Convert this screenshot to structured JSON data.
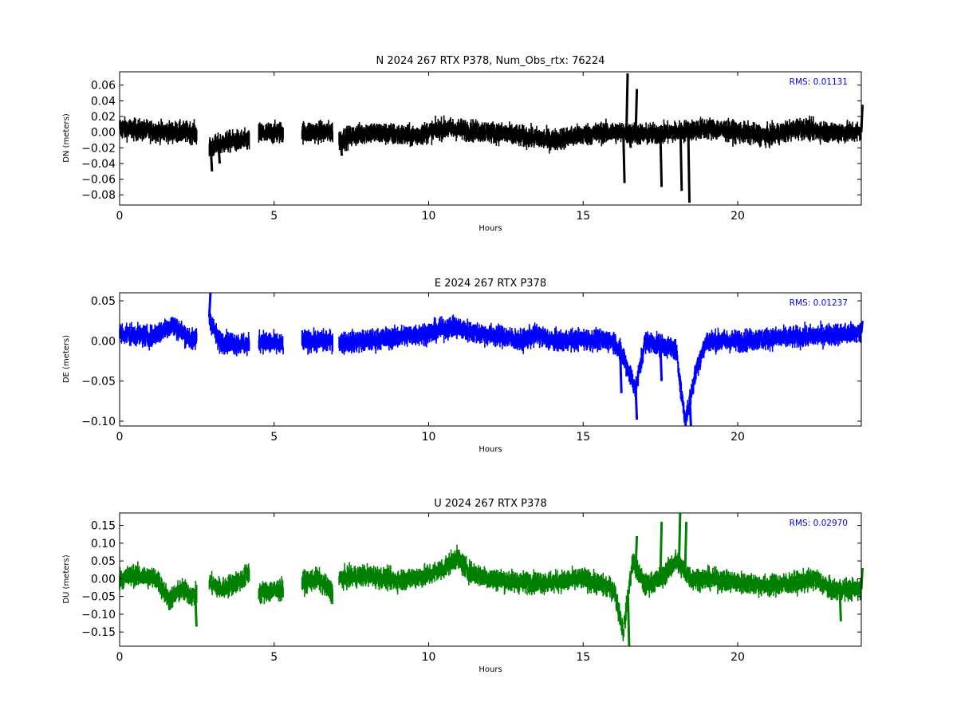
{
  "chart_data": [
    {
      "type": "scatter",
      "title": "N 2024 267 RTX  P378, Num_Obs_rtx: 76224",
      "xlabel": "Hours",
      "ylabel": "DN (meters)",
      "xlim": [
        0,
        24
      ],
      "ylim": [
        -0.093,
        0.077
      ],
      "xticks": [
        0,
        5,
        10,
        15,
        20
      ],
      "yticks": [
        -0.08,
        -0.06,
        -0.04,
        -0.02,
        0.0,
        0.02,
        0.04,
        0.06
      ],
      "ytick_labels": [
        "−0.08",
        "−0.06",
        "−0.04",
        "−0.02",
        "0.00",
        "0.02",
        "0.04",
        "0.06"
      ],
      "grid": false,
      "color": "#000000",
      "annotation": "RMS:  0.01131",
      "annotation_color": "#0000ff",
      "segments": [
        [
          0.0,
          2.5
        ],
        [
          2.9,
          4.2
        ],
        [
          4.5,
          5.3
        ],
        [
          5.9,
          6.9
        ],
        [
          7.1,
          24.0
        ]
      ],
      "trend": [
        [
          0,
          0.005
        ],
        [
          0.5,
          0.003
        ],
        [
          1.5,
          0.0
        ],
        [
          2.4,
          0.0
        ],
        [
          2.9,
          -0.02
        ],
        [
          3.5,
          -0.012
        ],
        [
          4.2,
          -0.01
        ],
        [
          4.5,
          -0.002
        ],
        [
          5.3,
          0.0
        ],
        [
          5.9,
          0.0
        ],
        [
          6.9,
          0.0
        ],
        [
          7.1,
          -0.01
        ],
        [
          8.0,
          0.0
        ],
        [
          9.5,
          -0.005
        ],
        [
          10.5,
          0.005
        ],
        [
          12,
          0.0
        ],
        [
          13,
          -0.005
        ],
        [
          14,
          -0.01
        ],
        [
          15,
          -0.003
        ],
        [
          16,
          0.0
        ],
        [
          17,
          -0.003
        ],
        [
          18,
          0.0
        ],
        [
          19,
          0.005
        ],
        [
          20,
          0.0
        ],
        [
          21,
          -0.005
        ],
        [
          22,
          0.005
        ],
        [
          23,
          0.0
        ],
        [
          24,
          0.0
        ]
      ],
      "noise": 0.008,
      "spikes": [
        [
          2.95,
          -0.05
        ],
        [
          3.2,
          -0.04
        ],
        [
          7.15,
          -0.03
        ],
        [
          16.3,
          -0.065
        ],
        [
          16.4,
          0.075
        ],
        [
          16.5,
          -0.02
        ],
        [
          16.7,
          0.055
        ],
        [
          17.5,
          -0.07
        ],
        [
          18.15,
          -0.075
        ],
        [
          18.4,
          -0.09
        ],
        [
          24.0,
          0.035
        ]
      ]
    },
    {
      "type": "scatter",
      "title": "E 2024 267 RTX  P378",
      "xlabel": "Hours",
      "ylabel": "DE (meters)",
      "xlim": [
        0,
        24
      ],
      "ylim": [
        -0.106,
        0.06
      ],
      "xticks": [
        0,
        5,
        10,
        15,
        20
      ],
      "yticks": [
        -0.1,
        -0.05,
        0.0,
        0.05
      ],
      "ytick_labels": [
        "−0.10",
        "−0.05",
        "0.00",
        "0.05"
      ],
      "grid": false,
      "color": "#0000ff",
      "annotation": "RMS:  0.01237",
      "annotation_color": "#0000ff",
      "segments": [
        [
          0.0,
          2.5
        ],
        [
          2.9,
          4.2
        ],
        [
          4.5,
          5.3
        ],
        [
          5.9,
          6.9
        ],
        [
          7.1,
          24.0
        ]
      ],
      "trend": [
        [
          0,
          0.01
        ],
        [
          1.0,
          0.005
        ],
        [
          1.7,
          0.02
        ],
        [
          2.4,
          0.0
        ],
        [
          2.9,
          0.03
        ],
        [
          3.2,
          0.0
        ],
        [
          4.2,
          -0.005
        ],
        [
          4.5,
          0.0
        ],
        [
          5.3,
          -0.005
        ],
        [
          5.9,
          0.0
        ],
        [
          6.9,
          0.0
        ],
        [
          7.1,
          -0.002
        ],
        [
          8,
          0.0
        ],
        [
          9,
          0.005
        ],
        [
          10,
          0.01
        ],
        [
          10.8,
          0.018
        ],
        [
          11.5,
          0.01
        ],
        [
          12.5,
          0.005
        ],
        [
          13,
          0.0
        ],
        [
          13.5,
          0.008
        ],
        [
          14,
          0.0
        ],
        [
          15,
          0.002
        ],
        [
          16,
          0.0
        ],
        [
          16.3,
          -0.02
        ],
        [
          16.7,
          -0.06
        ],
        [
          17,
          0.0
        ],
        [
          17.5,
          -0.005
        ],
        [
          18,
          -0.01
        ],
        [
          18.3,
          -0.1
        ],
        [
          18.7,
          -0.03
        ],
        [
          19,
          0.0
        ],
        [
          20,
          0.0
        ],
        [
          21,
          0.003
        ],
        [
          22,
          0.005
        ],
        [
          23,
          0.008
        ],
        [
          24,
          0.01
        ]
      ],
      "noise": 0.008,
      "spikes": [
        [
          2.9,
          0.06
        ],
        [
          16.2,
          -0.065
        ],
        [
          16.7,
          -0.098
        ],
        [
          17.5,
          -0.05
        ],
        [
          18.1,
          -0.05
        ],
        [
          18.45,
          -0.106
        ],
        [
          24.0,
          0.025
        ]
      ]
    },
    {
      "type": "scatter",
      "title": "U 2024 267 RTX  P378",
      "xlabel": "Hours",
      "ylabel": "DU (meters)",
      "xlim": [
        0,
        24
      ],
      "ylim": [
        -0.19,
        0.185
      ],
      "xticks": [
        0,
        5,
        10,
        15,
        20
      ],
      "yticks": [
        -0.15,
        -0.1,
        -0.05,
        0.0,
        0.05,
        0.1,
        0.15
      ],
      "ytick_labels": [
        "−0.15",
        "−0.10",
        "−0.05",
        "0.00",
        "0.05",
        "0.10",
        "0.15"
      ],
      "grid": false,
      "color": "#008000",
      "annotation": "RMS:  0.02970",
      "annotation_color": "#0000ff",
      "segments": [
        [
          0.0,
          2.5
        ],
        [
          2.9,
          4.2
        ],
        [
          4.5,
          5.3
        ],
        [
          5.9,
          6.9
        ],
        [
          7.1,
          24.0
        ]
      ],
      "trend": [
        [
          0,
          0.0
        ],
        [
          0.5,
          0.01
        ],
        [
          1.2,
          0.0
        ],
        [
          1.6,
          -0.06
        ],
        [
          2.0,
          -0.03
        ],
        [
          2.4,
          -0.05
        ],
        [
          2.9,
          -0.01
        ],
        [
          3.3,
          -0.03
        ],
        [
          4.0,
          0.0
        ],
        [
          4.2,
          0.02
        ],
        [
          4.5,
          -0.04
        ],
        [
          5.3,
          -0.03
        ],
        [
          5.9,
          -0.01
        ],
        [
          6.4,
          0.0
        ],
        [
          6.9,
          -0.04
        ],
        [
          7.1,
          0.0
        ],
        [
          8,
          0.01
        ],
        [
          9,
          -0.005
        ],
        [
          10,
          0.01
        ],
        [
          10.5,
          0.03
        ],
        [
          10.9,
          0.06
        ],
        [
          11.3,
          0.02
        ],
        [
          12,
          0.0
        ],
        [
          13,
          -0.01
        ],
        [
          14,
          -0.01
        ],
        [
          15,
          0.0
        ],
        [
          16,
          -0.03
        ],
        [
          16.3,
          -0.15
        ],
        [
          16.6,
          0.05
        ],
        [
          17,
          -0.02
        ],
        [
          17.5,
          0.0
        ],
        [
          18,
          0.05
        ],
        [
          18.5,
          0.0
        ],
        [
          19,
          0.0
        ],
        [
          20,
          -0.01
        ],
        [
          21,
          -0.02
        ],
        [
          22,
          -0.01
        ],
        [
          22.5,
          0.0
        ],
        [
          23,
          -0.03
        ],
        [
          24,
          -0.03
        ]
      ],
      "noise": 0.018,
      "spikes": [
        [
          2.45,
          -0.135
        ],
        [
          16.45,
          -0.19
        ],
        [
          16.7,
          0.12
        ],
        [
          17.5,
          0.16
        ],
        [
          18.1,
          0.185
        ],
        [
          18.3,
          0.16
        ],
        [
          23.3,
          -0.12
        ],
        [
          24.0,
          0.03
        ]
      ]
    }
  ]
}
